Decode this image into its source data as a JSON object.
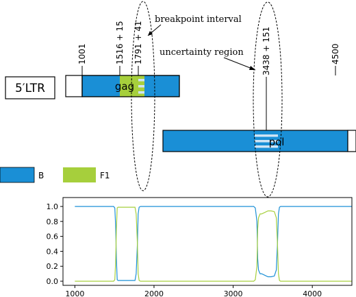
{
  "ltr_label": "5′LTR",
  "genes": [
    {
      "name": "gag",
      "start": 1001,
      "end": 2300
    },
    {
      "name": "pol",
      "start": 2090,
      "end": 4900
    }
  ],
  "position_labels": [
    "1001",
    "1516 + 15",
    "1791 + 41",
    "3438 + 151",
    "4500"
  ],
  "annotations": {
    "breakpoint": "breakpoint interval",
    "uncertainty": "uncertainty region"
  },
  "legend": [
    {
      "name": "B",
      "color": "#1a8fd6"
    },
    {
      "name": "F1",
      "color": "#a6cf3c"
    }
  ],
  "colors": {
    "B": "#1a8fd6",
    "F1": "#a6cf3c",
    "stripe": "#cfe4f5"
  },
  "chart_data": {
    "type": "line",
    "xlim": [
      850,
      4500
    ],
    "ylim": [
      0,
      1
    ],
    "xticks": [
      1000,
      2000,
      3000,
      4000
    ],
    "yticks": [
      0.0,
      0.2,
      0.4,
      0.6,
      0.8,
      1.0
    ],
    "series": [
      {
        "color": "#1a8fd6",
        "points": [
          [
            1000,
            1.0
          ],
          [
            1490,
            1.0
          ],
          [
            1505,
            0.98
          ],
          [
            1515,
            0.75
          ],
          [
            1525,
            0.3
          ],
          [
            1535,
            0.02
          ],
          [
            1545,
            0.01
          ],
          [
            1760,
            0.01
          ],
          [
            1775,
            0.1
          ],
          [
            1790,
            0.5
          ],
          [
            1800,
            0.9
          ],
          [
            1812,
            0.99
          ],
          [
            1830,
            1.0
          ],
          [
            3260,
            1.0
          ],
          [
            3280,
            0.98
          ],
          [
            3300,
            0.8
          ],
          [
            3310,
            0.3
          ],
          [
            3320,
            0.15
          ],
          [
            3340,
            0.1
          ],
          [
            3360,
            0.1
          ],
          [
            3400,
            0.08
          ],
          [
            3440,
            0.06
          ],
          [
            3480,
            0.06
          ],
          [
            3520,
            0.07
          ],
          [
            3545,
            0.15
          ],
          [
            3560,
            0.5
          ],
          [
            3572,
            0.9
          ],
          [
            3585,
            0.99
          ],
          [
            3600,
            1.0
          ],
          [
            4500,
            1.0
          ]
        ]
      },
      {
        "color": "#a6cf3c",
        "points": [
          [
            1000,
            0.0
          ],
          [
            1490,
            0.0
          ],
          [
            1505,
            0.02
          ],
          [
            1515,
            0.25
          ],
          [
            1525,
            0.7
          ],
          [
            1535,
            0.98
          ],
          [
            1545,
            0.99
          ],
          [
            1760,
            0.99
          ],
          [
            1775,
            0.9
          ],
          [
            1790,
            0.5
          ],
          [
            1800,
            0.1
          ],
          [
            1812,
            0.01
          ],
          [
            1830,
            0.0
          ],
          [
            3260,
            0.0
          ],
          [
            3280,
            0.02
          ],
          [
            3300,
            0.2
          ],
          [
            3310,
            0.7
          ],
          [
            3320,
            0.85
          ],
          [
            3340,
            0.9
          ],
          [
            3360,
            0.9
          ],
          [
            3400,
            0.92
          ],
          [
            3440,
            0.94
          ],
          [
            3480,
            0.94
          ],
          [
            3520,
            0.93
          ],
          [
            3545,
            0.85
          ],
          [
            3560,
            0.5
          ],
          [
            3572,
            0.1
          ],
          [
            3585,
            0.01
          ],
          [
            3600,
            0.0
          ],
          [
            4500,
            0.0
          ]
        ]
      }
    ]
  }
}
